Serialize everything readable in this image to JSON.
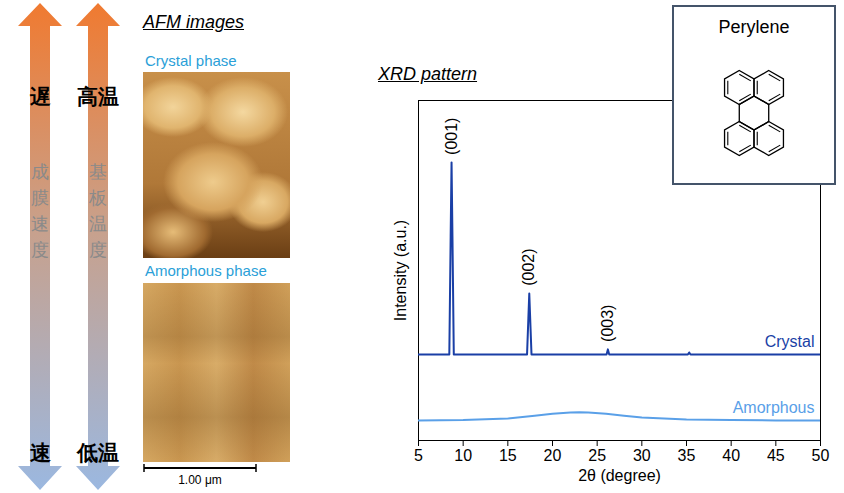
{
  "chart_data": {
    "type": "line",
    "title": "XRD pattern",
    "x_label": "2θ (degree)",
    "y_label": "Intensity (a.u.)",
    "xlim": [
      5,
      50
    ],
    "xticks": [
      5,
      10,
      15,
      20,
      25,
      30,
      35,
      40,
      45,
      50
    ],
    "ylim": [
      0,
      100
    ],
    "yticks": [],
    "tick_labels": "x",
    "series": [
      {
        "name": "Crystal",
        "color": "#1a3fa6",
        "x": [
          5,
          8.45,
          8.6,
          8.7,
          8.8,
          8.95,
          17.15,
          17.3,
          17.4,
          17.5,
          17.65,
          26.05,
          26.2,
          26.35,
          35.15,
          35.3,
          35.45,
          50
        ],
        "values": [
          25.3,
          25.3,
          60,
          81.8,
          60,
          25.3,
          25.3,
          36,
          43.2,
          36,
          25.3,
          25.3,
          26.8,
          25.3,
          25.3,
          25.9,
          25.3,
          25.3
        ]
      },
      {
        "name": "Amorphous",
        "color": "#5aa0e8",
        "x": [
          5,
          10,
          15,
          18,
          20,
          22,
          23,
          24,
          26,
          28,
          30,
          35,
          40,
          45,
          50
        ],
        "values": [
          5.9,
          6.0,
          6.5,
          7.3,
          7.9,
          8.2,
          8.3,
          8.2,
          7.9,
          7.3,
          6.8,
          6.2,
          6.0,
          5.9,
          5.9
        ]
      }
    ],
    "annotations": [
      {
        "text": "(001)",
        "x": 8.7,
        "y": 84
      },
      {
        "text": "(002)",
        "x": 17.4,
        "y": 45.5
      },
      {
        "text": "(003)",
        "x": 26.2,
        "y": 29
      }
    ]
  },
  "arrows": [
    {
      "top": "遅",
      "middle": "成膜速度",
      "bottom": "速"
    },
    {
      "top": "高温",
      "middle": "基板温度",
      "bottom": "低温"
    }
  ],
  "afm": {
    "title": "AFM images",
    "images": [
      {
        "label": "Crystal phase"
      },
      {
        "label": "Amorphous phase"
      }
    ],
    "scale_bar": "1.00 μm"
  },
  "structure": {
    "title": "Perylene"
  }
}
